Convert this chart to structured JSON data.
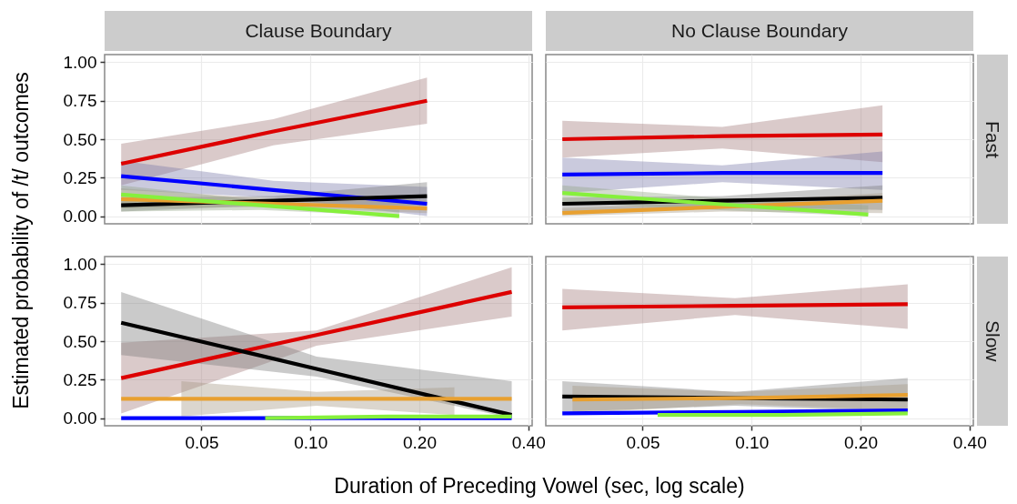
{
  "chart_data": [
    {
      "type": "line",
      "title": "Clause Boundary",
      "ylabel": "Estimated probability of /t/ outcomes",
      "xlim": [
        0.027,
        0.41
      ],
      "ylim": [
        -0.05,
        1.05
      ],
      "log": "x",
      "grid": true,
      "tick_labels": "y",
      "line_style": "solid",
      "xticks": [
        0.05,
        0.1,
        0.2,
        0.4
      ],
      "yticks": [
        {
          "value": 0,
          "label": "0.00"
        },
        {
          "value": 0.25,
          "label": "0.25"
        },
        {
          "value": 0.5,
          "label": "0.50"
        },
        {
          "value": 0.75,
          "label": "0.75"
        },
        {
          "value": 1,
          "label": "1.00"
        }
      ],
      "series": [
        {
          "color": "#dd0000",
          "x": [
            0.03,
            0.079,
            0.21
          ],
          "values": [
            0.34,
            0.55,
            0.75
          ],
          "lower": [
            0.2,
            0.46,
            0.6
          ],
          "upper": [
            0.47,
            0.63,
            0.9
          ]
        },
        {
          "color": "#0000ff",
          "x": [
            0.03,
            0.079,
            0.21
          ],
          "values": [
            0.26,
            0.17,
            0.08
          ],
          "lower": [
            0.17,
            0.12,
            0.0
          ],
          "upper": [
            0.36,
            0.23,
            0.19
          ]
        },
        {
          "color": "#000000",
          "x": [
            0.03,
            0.079,
            0.21
          ],
          "values": [
            0.07,
            0.1,
            0.13
          ],
          "lower": [
            0.03,
            0.07,
            0.07
          ],
          "upper": [
            0.12,
            0.13,
            0.22
          ]
        },
        {
          "color": "#e8a030",
          "x": [
            0.03,
            0.079,
            0.21
          ],
          "values": [
            0.11,
            0.08,
            0.05
          ],
          "lower": [
            0.05,
            0.06,
            0.02
          ],
          "upper": [
            0.18,
            0.11,
            0.1
          ]
        },
        {
          "color": "#86f03c",
          "x": [
            0.03,
            0.073,
            0.176
          ],
          "values": [
            0.14,
            0.07,
            0.0
          ],
          "lower": [
            0.03,
            0.04,
            0.0
          ],
          "upper": [
            0.2,
            0.1,
            0.04
          ]
        }
      ]
    },
    {
      "type": "line",
      "title": "No Clause Boundary",
      "annotations": [
        "Fast"
      ],
      "xlim": [
        0.027,
        0.41
      ],
      "ylim": [
        -0.05,
        1.05
      ],
      "log": "x",
      "grid": true,
      "tick_labels": false,
      "line_style": "solid",
      "xticks": [
        0.05,
        0.1,
        0.2,
        0.4
      ],
      "yticks": [
        0,
        0.25,
        0.5,
        0.75,
        1
      ],
      "series": [
        {
          "color": "#dd0000",
          "x": [
            0.03,
            0.083,
            0.23
          ],
          "values": [
            0.5,
            0.52,
            0.53
          ],
          "lower": [
            0.38,
            0.44,
            0.35
          ],
          "upper": [
            0.62,
            0.58,
            0.72
          ]
        },
        {
          "color": "#0000ff",
          "x": [
            0.03,
            0.083,
            0.23
          ],
          "values": [
            0.27,
            0.28,
            0.28
          ],
          "lower": [
            0.15,
            0.22,
            0.17
          ],
          "upper": [
            0.38,
            0.33,
            0.42
          ]
        },
        {
          "color": "#000000",
          "x": [
            0.03,
            0.083,
            0.23
          ],
          "values": [
            0.08,
            0.1,
            0.12
          ],
          "lower": [
            0.03,
            0.06,
            0.04
          ],
          "upper": [
            0.12,
            0.13,
            0.2
          ]
        },
        {
          "color": "#e8a030",
          "x": [
            0.03,
            0.083,
            0.23
          ],
          "values": [
            0.02,
            0.06,
            0.1
          ],
          "lower": [
            0.0,
            0.03,
            0.02
          ],
          "upper": [
            0.05,
            0.09,
            0.15
          ]
        },
        {
          "color": "#86f03c",
          "x": [
            0.03,
            0.079,
            0.21
          ],
          "values": [
            0.15,
            0.08,
            0.01
          ],
          "lower": [
            0.09,
            0.04,
            0.0
          ],
          "upper": [
            0.2,
            0.12,
            0.07
          ]
        }
      ]
    },
    {
      "type": "line",
      "xlabel": "Duration of Preceding Vowel (sec, log scale)",
      "xlim": [
        0.027,
        0.41
      ],
      "ylim": [
        -0.05,
        1.05
      ],
      "log": "x",
      "grid": true,
      "line_style": "solid",
      "xticks": [
        {
          "value": 0.05,
          "label": "0.05"
        },
        {
          "value": 0.1,
          "label": "0.10"
        },
        {
          "value": 0.2,
          "label": "0.20"
        },
        {
          "value": 0.4,
          "label": "0.40"
        }
      ],
      "yticks": [
        {
          "value": 0,
          "label": "0.00"
        },
        {
          "value": 0.25,
          "label": "0.25"
        },
        {
          "value": 0.5,
          "label": "0.50"
        },
        {
          "value": 0.75,
          "label": "0.75"
        },
        {
          "value": 1,
          "label": "1.00"
        }
      ],
      "series": [
        {
          "color": "#dd0000",
          "x": [
            0.03,
            0.104,
            0.36
          ],
          "values": [
            0.26,
            0.54,
            0.82
          ],
          "lower": [
            0.03,
            0.47,
            0.66
          ],
          "upper": [
            0.49,
            0.57,
            0.98
          ]
        },
        {
          "color": "#000000",
          "x": [
            0.03,
            0.104,
            0.36
          ],
          "values": [
            0.62,
            0.32,
            0.02
          ],
          "lower": [
            0.41,
            0.27,
            0.0
          ],
          "upper": [
            0.82,
            0.4,
            0.24
          ]
        },
        {
          "color": "#e8a030",
          "x": [
            0.03,
            0.044,
            0.104,
            0.25,
            0.36
          ],
          "values": [
            0.125,
            0.125,
            0.125,
            0.125,
            0.125
          ],
          "lower": [
            null,
            0.01,
            0.08,
            0.02,
            null
          ],
          "upper": [
            null,
            0.24,
            0.17,
            0.2,
            null
          ]
        },
        {
          "color": "#0000ff",
          "x": [
            0.03,
            0.104,
            0.36
          ],
          "values": [
            0.0,
            0.0,
            0.0
          ]
        },
        {
          "color": "#86f03c",
          "x": [
            0.075,
            0.164,
            0.36
          ],
          "values": [
            0.0,
            0.01,
            0.01
          ]
        }
      ]
    },
    {
      "type": "line",
      "annotations": [
        "Slow"
      ],
      "xlim": [
        0.027,
        0.41
      ],
      "ylim": [
        -0.05,
        1.05
      ],
      "log": "x",
      "grid": true,
      "tick_labels": "x",
      "line_style": "solid",
      "xticks": [
        {
          "value": 0.05,
          "label": "0.05"
        },
        {
          "value": 0.1,
          "label": "0.10"
        },
        {
          "value": 0.2,
          "label": "0.20"
        },
        {
          "value": 0.4,
          "label": "0.40"
        }
      ],
      "yticks": [
        0,
        0.25,
        0.5,
        0.75,
        1
      ],
      "series": [
        {
          "color": "#dd0000",
          "x": [
            0.03,
            0.09,
            0.27
          ],
          "values": [
            0.72,
            0.73,
            0.74
          ],
          "lower": [
            0.57,
            0.67,
            0.58
          ],
          "upper": [
            0.84,
            0.78,
            0.87
          ]
        },
        {
          "color": "#000000",
          "x": [
            0.03,
            0.09,
            0.27
          ],
          "values": [
            0.14,
            0.13,
            0.12
          ],
          "lower": [
            0.04,
            0.08,
            0.04
          ],
          "upper": [
            0.24,
            0.17,
            0.26
          ]
        },
        {
          "color": "#e8a030",
          "x": [
            0.032,
            0.093,
            0.27
          ],
          "values": [
            0.12,
            0.13,
            0.15
          ],
          "lower": [
            0.03,
            0.09,
            0.05
          ],
          "upper": [
            0.21,
            0.17,
            0.22
          ]
        },
        {
          "color": "#0000ff",
          "x": [
            0.03,
            0.09,
            0.27
          ],
          "values": [
            0.03,
            0.04,
            0.05
          ]
        },
        {
          "color": "#86f03c",
          "x": [
            0.055,
            0.122,
            0.27
          ],
          "values": [
            0.02,
            0.02,
            0.03
          ]
        }
      ]
    }
  ]
}
